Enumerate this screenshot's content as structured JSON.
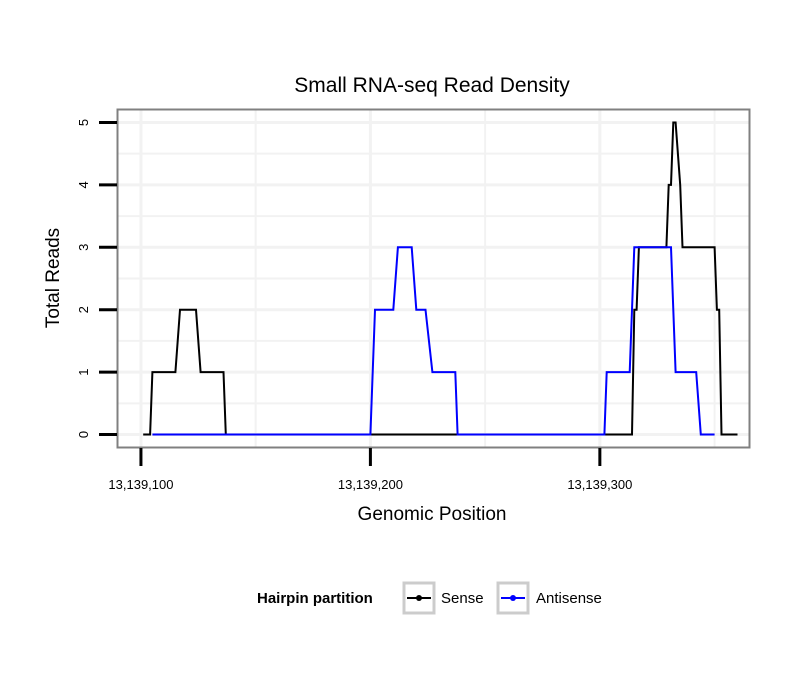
{
  "chart_data": {
    "type": "line",
    "title": "Small RNA-seq Read Density",
    "xlabel": "Genomic Position",
    "ylabel": "Total Reads",
    "xlim": [
      13139090,
      13139365
    ],
    "ylim": [
      -0.2,
      5.2
    ],
    "x_ticks": [
      13139100,
      13139200,
      13139300
    ],
    "x_tick_labels": [
      "13,139,100",
      "13,139,200",
      "13,139,300"
    ],
    "y_ticks": [
      0,
      1,
      2,
      3,
      4,
      5
    ],
    "y_tick_labels": [
      "0",
      "1",
      "2",
      "3",
      "4",
      "5"
    ],
    "grid": true,
    "legend_title": "Hairpin partition",
    "legend_position": "bottom",
    "series": [
      {
        "name": "Sense",
        "color": "#000000",
        "x": [
          13139101,
          13139104,
          13139105,
          13139115,
          13139117,
          13139124,
          13139126,
          13139136,
          13139137,
          13139216,
          13139302,
          13139314,
          13139315,
          13139316,
          13139317,
          13139329,
          13139330,
          13139331,
          13139332,
          13139333,
          13139335,
          13139336,
          13139339,
          13139350,
          13139351,
          13139352,
          13139353,
          13139360
        ],
        "y": [
          0,
          0,
          1,
          1,
          2,
          2,
          1,
          1,
          0,
          0,
          0,
          0,
          2,
          2,
          3,
          3,
          4,
          4,
          5,
          5,
          4,
          3,
          3,
          3,
          2,
          2,
          0,
          0
        ]
      },
      {
        "name": "Antisense",
        "color": "#0000ff",
        "x": [
          13139105,
          13139137,
          13139200,
          13139202,
          13139210,
          13139212,
          13139218,
          13139220,
          13139224,
          13139227,
          13139237,
          13139238,
          13139302,
          13139303,
          13139313,
          13139314,
          13139315,
          13139331,
          13139333,
          13139342,
          13139344,
          13139350
        ],
        "y": [
          0,
          0,
          0,
          2,
          2,
          3,
          3,
          2,
          2,
          1,
          1,
          0,
          0,
          1,
          1,
          2,
          3,
          3,
          1,
          1,
          0,
          0
        ]
      }
    ]
  }
}
